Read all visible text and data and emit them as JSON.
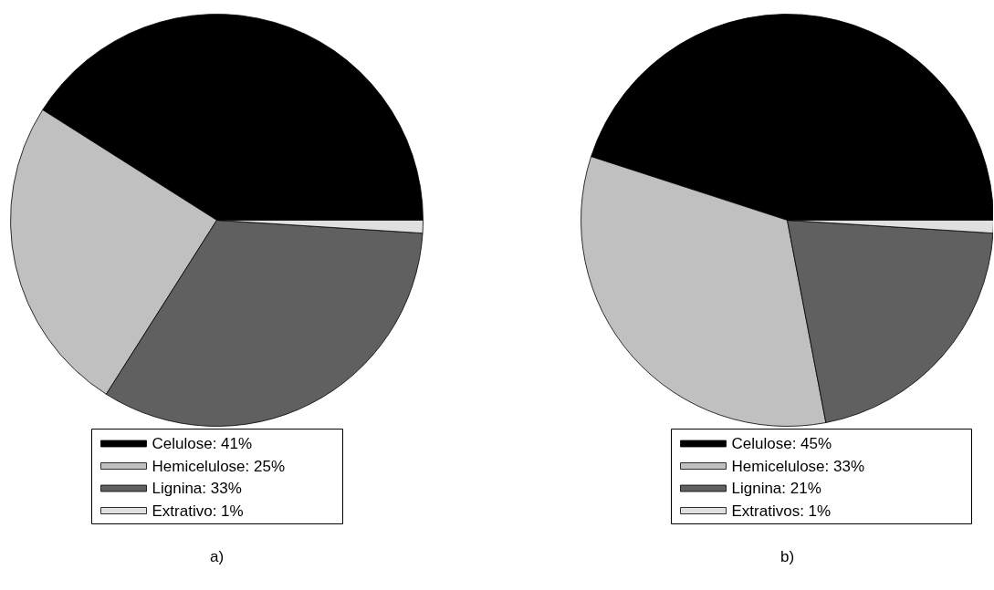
{
  "chart_data": [
    {
      "type": "pie",
      "title": "a)",
      "categories": [
        "Celulose",
        "Hemicelulose",
        "Lignina",
        "Extrativo"
      ],
      "values": [
        41,
        25,
        33,
        1
      ],
      "value_labels": [
        "41%",
        "25%",
        "33%",
        "1%"
      ],
      "colors": [
        "#000000",
        "#c0c0c0",
        "#606060",
        "#e0e0e0"
      ],
      "legend": "bottom"
    },
    {
      "type": "pie",
      "title": "b)",
      "categories": [
        "Celulose",
        "Hemicelulose",
        "Lignina",
        "Extrativos"
      ],
      "values": [
        45,
        33,
        21,
        1
      ],
      "value_labels": [
        "45%",
        "33%",
        "21%",
        "1%"
      ],
      "colors": [
        "#000000",
        "#c0c0c0",
        "#606060",
        "#e0e0e0"
      ],
      "legend": "bottom"
    }
  ]
}
